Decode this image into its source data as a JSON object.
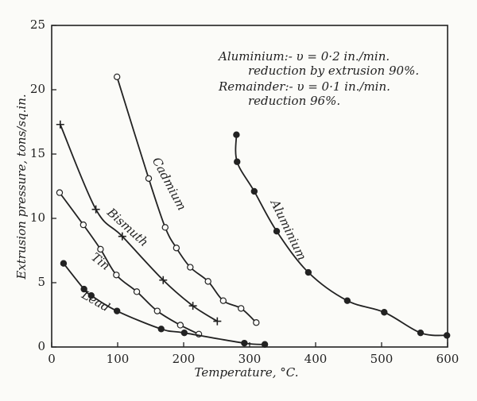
{
  "chart_data": {
    "type": "scatter",
    "xlabel": "Temperature, °C.",
    "ylabel": "Extrusion pressure, tons/sq.in.",
    "annotations": [
      "Aluminium:- υ = 0·2 in./min.",
      "reduction by extrusion 90%.",
      "Remainder:- υ = 0·1 in./min.",
      "reduction 96%."
    ],
    "xlim": [
      0,
      600
    ],
    "xticks": [
      0,
      100,
      200,
      300,
      400,
      500,
      600
    ],
    "ylim": [
      0,
      25
    ],
    "yticks": [
      0,
      5,
      10,
      15,
      20,
      25
    ],
    "series": [
      {
        "name": "Aluminium",
        "marker": "filled",
        "color": "#222222",
        "x": [
          280,
          281,
          307,
          341,
          389,
          448,
          504,
          559,
          599
        ],
        "values": [
          16.5,
          14.4,
          12.1,
          9.0,
          5.8,
          3.6,
          2.7,
          1.1,
          0.9
        ]
      },
      {
        "name": "Cadmium",
        "marker": "open",
        "color": "#222222",
        "x": [
          99,
          147,
          172,
          189,
          210,
          237,
          260,
          287,
          310
        ],
        "values": [
          21.0,
          13.1,
          9.3,
          7.7,
          6.2,
          5.1,
          3.6,
          3.0,
          1.9
        ]
      },
      {
        "name": "Bismuth",
        "marker": "plus",
        "color": "#222222",
        "x": [
          13,
          67,
          107,
          169,
          214,
          251
        ],
        "values": [
          17.3,
          10.7,
          8.6,
          5.2,
          3.2,
          2.0
        ]
      },
      {
        "name": "Tin",
        "marker": "open",
        "color": "#222222",
        "x": [
          12,
          48,
          74,
          98,
          129,
          160,
          195,
          223
        ],
        "values": [
          12.0,
          9.5,
          7.6,
          5.6,
          4.3,
          2.8,
          1.7,
          1.0
        ]
      },
      {
        "name": "Lead",
        "marker": "filled",
        "color": "#222222",
        "x": [
          18,
          49,
          60,
          99,
          166,
          201,
          292,
          323
        ],
        "values": [
          6.5,
          4.5,
          4.0,
          2.8,
          1.4,
          1.1,
          0.3,
          0.2
        ]
      }
    ]
  }
}
